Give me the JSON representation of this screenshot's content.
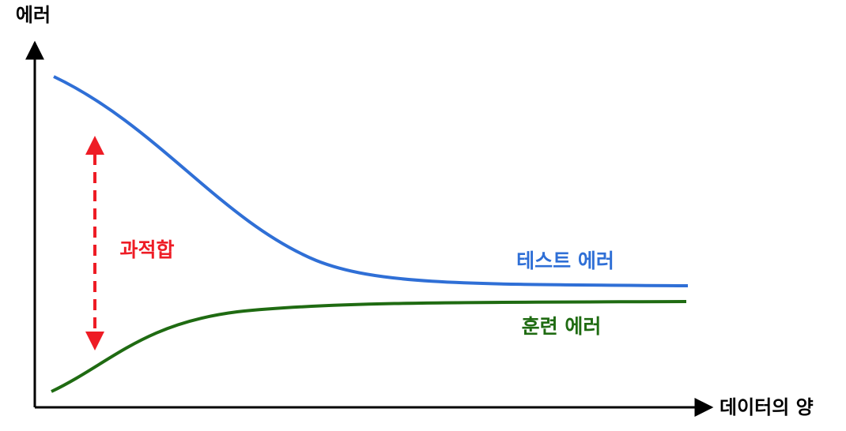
{
  "axes": {
    "y_label": "에러",
    "x_label": "데이터의 양"
  },
  "curves": {
    "test": "테스트 에러",
    "train": "훈련 에러"
  },
  "annotation": "과적합"
}
